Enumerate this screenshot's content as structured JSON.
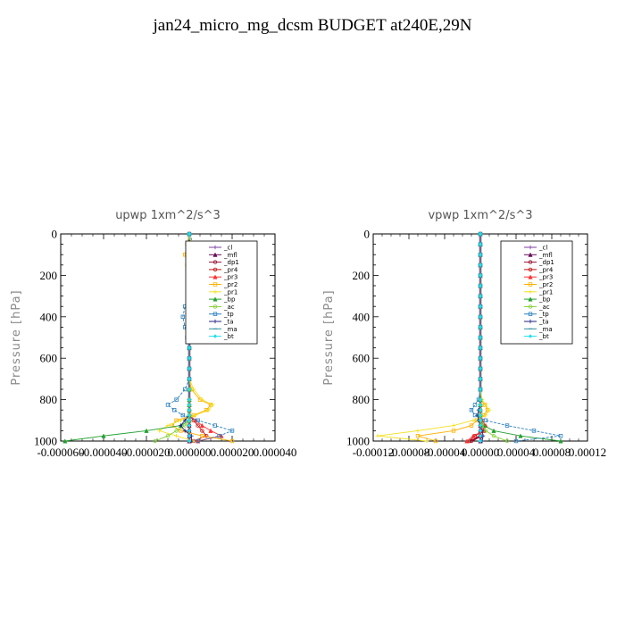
{
  "title": "jan24_micro_mg_dcsm  BUDGET at240E,29N",
  "colors": {
    "cl": "#7b3fa0",
    "mfl": "#6a0f5a",
    "dp1": "#9b1030",
    "pr4": "#c01010",
    "pr3": "#ff3030",
    "pr2": "#ffb000",
    "pr1": "#f2e020",
    "bp": "#22a030",
    "ac": "#80d030",
    "tp": "#2a80c0",
    "ta": "#202080",
    "ma": "#3090a0",
    "bt": "#20e0f0"
  },
  "chart_data": [
    {
      "type": "line",
      "title": "upwp   1xm^2/s^3",
      "ylabel": "Pressure [hPa]",
      "xlabel": "",
      "xlim": [
        -6e-05,
        4e-05
      ],
      "ylim": [
        1000,
        0
      ],
      "xticks": [
        "-0.000060",
        "-0.000040",
        "-0.000020",
        "0.000000",
        "0.000020",
        "0.000040"
      ],
      "yticks": [
        "0",
        "200",
        "400",
        "600",
        "800",
        "1000"
      ],
      "legend": "top-right",
      "levels": [
        0,
        50,
        100,
        150,
        200,
        250,
        300,
        350,
        400,
        450,
        500,
        550,
        600,
        650,
        700,
        750,
        800,
        825,
        850,
        875,
        900,
        925,
        950,
        975,
        1000
      ],
      "series": [
        {
          "name": "_cl",
          "key": "cl",
          "values": [
            0,
            0,
            0,
            0,
            0,
            0,
            0,
            0,
            0,
            0,
            0,
            0,
            0,
            0,
            0,
            0,
            0,
            0,
            0,
            0,
            0,
            0,
            0,
            0,
            0
          ]
        },
        {
          "name": "_mfl",
          "key": "mfl",
          "values": [
            0,
            0,
            0,
            0,
            0,
            0,
            0,
            0,
            0,
            0,
            0,
            0,
            0,
            0,
            0,
            0,
            0,
            0,
            0,
            0,
            0,
            0,
            0,
            0,
            0
          ]
        },
        {
          "name": "_dp1",
          "key": "dp1",
          "values": [
            0,
            0,
            0,
            0,
            0,
            0,
            0,
            0,
            0,
            0,
            0,
            0,
            0,
            0,
            0,
            0,
            0,
            0,
            0,
            0,
            0,
            0,
            0,
            0,
            0
          ]
        },
        {
          "name": "_pr4",
          "key": "pr4",
          "values": [
            0,
            0,
            0,
            0,
            0,
            0,
            0,
            0,
            0,
            0,
            0,
            0,
            0,
            0,
            0,
            0,
            0,
            0,
            0,
            0,
            2e-06,
            4e-06,
            6e-06,
            8e-06,
            2e-06
          ]
        },
        {
          "name": "_pr3",
          "key": "pr3",
          "values": [
            0,
            0,
            0,
            0,
            0,
            0,
            0,
            0,
            0,
            0,
            0,
            0,
            0,
            0,
            0,
            0,
            0,
            0,
            0,
            0,
            3e-06,
            6e-06,
            1e-05,
            1.5e-05,
            4e-06
          ]
        },
        {
          "name": "_pr2",
          "key": "pr2",
          "values": [
            0,
            -1e-06,
            -2e-06,
            -1e-06,
            0,
            0,
            0,
            1e-06,
            2e-06,
            1e-06,
            0,
            0,
            0,
            0,
            0,
            1e-06,
            5e-06,
            1e-05,
            8e-06,
            2e-06,
            -6e-06,
            -8e-06,
            -4e-06,
            6e-06,
            2e-05
          ]
        },
        {
          "name": "_pr1",
          "key": "pr1",
          "values": [
            0,
            1e-06,
            0,
            -1e-06,
            0,
            0,
            0,
            -1e-06,
            -1e-06,
            0,
            0,
            0,
            0,
            0,
            0,
            2e-06,
            6e-06,
            1.1e-05,
            9e-06,
            3e-06,
            -4e-06,
            -1e-05,
            -1.4e-05,
            -6e-06,
            2e-06
          ]
        },
        {
          "name": "_bp",
          "key": "bp",
          "values": [
            0,
            0,
            0,
            0,
            0,
            0,
            0,
            0,
            0,
            0,
            0,
            0,
            0,
            0,
            0,
            0,
            0,
            0,
            0,
            0,
            0,
            -4e-06,
            -2e-05,
            -4e-05,
            -5.8e-05
          ]
        },
        {
          "name": "_ac",
          "key": "ac",
          "values": [
            0,
            0,
            0,
            0,
            0,
            0,
            0,
            0,
            0,
            0,
            0,
            0,
            0,
            0,
            0,
            0,
            0,
            0,
            0,
            0,
            0,
            -2e-06,
            -6e-06,
            -1e-05,
            -1.6e-05
          ]
        },
        {
          "name": "_tp",
          "key": "tp",
          "values": [
            0,
            2e-06,
            3e-06,
            1e-06,
            0,
            1e-06,
            0,
            -2e-06,
            -3e-06,
            -2e-06,
            -1e-06,
            0,
            0,
            0,
            0,
            -2e-06,
            -6e-06,
            -1e-05,
            -7e-06,
            -3e-06,
            4e-06,
            1.2e-05,
            2e-05,
            1.4e-05,
            4e-06
          ]
        },
        {
          "name": "_ta",
          "key": "ta",
          "values": [
            0,
            0,
            0,
            0,
            0,
            0,
            0,
            0,
            0,
            0,
            0,
            0,
            0,
            0,
            0,
            0,
            0,
            0,
            0,
            0,
            -2e-06,
            -4e-06,
            -2e-06,
            1e-06,
            1e-06
          ]
        },
        {
          "name": "_ma",
          "key": "ma",
          "values": [
            0,
            0,
            0,
            0,
            0,
            0,
            0,
            0,
            0,
            0,
            0,
            0,
            0,
            0,
            0,
            0,
            0,
            0,
            0,
            0,
            0,
            0,
            0,
            0,
            0
          ]
        },
        {
          "name": "_bt",
          "key": "bt",
          "values": [
            0,
            0,
            0,
            0,
            0,
            0,
            0,
            0,
            0,
            0,
            0,
            0,
            0,
            0,
            0,
            0,
            0,
            0,
            0,
            0,
            0,
            0,
            0,
            0,
            0
          ]
        }
      ]
    },
    {
      "type": "line",
      "title": "vpwp   1xm^2/s^3",
      "ylabel": "Pressure [hPa]",
      "xlabel": "",
      "xlim": [
        -0.00012,
        0.00012
      ],
      "ylim": [
        1000,
        0
      ],
      "xticks": [
        "-0.00012",
        "-0.00008",
        "-0.00004",
        "0.00000",
        "0.00004",
        "0.00008",
        "0.00012"
      ],
      "yticks": [
        "0",
        "200",
        "400",
        "600",
        "800",
        "1000"
      ],
      "legend": "top-right",
      "levels": [
        0,
        50,
        100,
        150,
        200,
        250,
        300,
        350,
        400,
        450,
        500,
        550,
        600,
        650,
        700,
        750,
        800,
        825,
        850,
        875,
        900,
        925,
        950,
        975,
        1000
      ],
      "series": [
        {
          "name": "_cl",
          "key": "cl",
          "values": [
            0,
            0,
            0,
            0,
            0,
            0,
            0,
            0,
            0,
            0,
            0,
            0,
            0,
            0,
            0,
            0,
            0,
            0,
            0,
            0,
            0,
            0,
            0,
            0,
            0
          ]
        },
        {
          "name": "_mfl",
          "key": "mfl",
          "values": [
            0,
            0,
            0,
            0,
            0,
            0,
            0,
            0,
            0,
            0,
            0,
            0,
            0,
            0,
            0,
            0,
            0,
            0,
            0,
            0,
            0,
            0,
            0,
            0,
            0
          ]
        },
        {
          "name": "_dp1",
          "key": "dp1",
          "values": [
            0,
            0,
            0,
            0,
            0,
            0,
            0,
            0,
            0,
            0,
            0,
            0,
            0,
            0,
            0,
            0,
            0,
            0,
            0,
            0,
            0,
            0,
            0,
            0,
            -1e-05
          ]
        },
        {
          "name": "_pr4",
          "key": "pr4",
          "values": [
            0,
            0,
            0,
            0,
            0,
            0,
            0,
            0,
            0,
            0,
            0,
            0,
            0,
            0,
            0,
            0,
            0,
            0,
            0,
            0,
            0,
            2e-06,
            4e-06,
            -6e-06,
            -1.2e-05
          ]
        },
        {
          "name": "_pr3",
          "key": "pr3",
          "values": [
            0,
            0,
            0,
            0,
            0,
            0,
            0,
            0,
            0,
            0,
            0,
            0,
            0,
            0,
            0,
            0,
            0,
            0,
            0,
            0,
            2e-06,
            6e-06,
            4e-06,
            -8e-06,
            -1.5e-05
          ]
        },
        {
          "name": "_pr2",
          "key": "pr2",
          "values": [
            0,
            0,
            0,
            0,
            0,
            0,
            0,
            0,
            0,
            0,
            0,
            0,
            0,
            0,
            0,
            0,
            0,
            5e-06,
            8e-06,
            4e-06,
            -4e-06,
            -1e-05,
            -3e-05,
            -7e-05,
            -5e-05
          ]
        },
        {
          "name": "_pr1",
          "key": "pr1",
          "values": [
            0,
            0,
            0,
            0,
            0,
            0,
            0,
            0,
            0,
            0,
            0,
            0,
            0,
            0,
            0,
            0,
            2e-06,
            6e-06,
            1e-05,
            6e-06,
            -8e-06,
            -3e-05,
            -7e-05,
            -0.000115,
            -6e-05
          ]
        },
        {
          "name": "_bp",
          "key": "bp",
          "values": [
            0,
            0,
            0,
            0,
            0,
            0,
            0,
            0,
            0,
            0,
            0,
            0,
            0,
            0,
            0,
            0,
            0,
            0,
            0,
            0,
            0,
            4e-06,
            1.5e-05,
            4.5e-05,
            9e-05
          ]
        },
        {
          "name": "_ac",
          "key": "ac",
          "values": [
            0,
            0,
            0,
            0,
            0,
            0,
            0,
            0,
            0,
            0,
            0,
            0,
            0,
            0,
            0,
            0,
            0,
            0,
            0,
            0,
            0,
            2e-06,
            6e-06,
            1.5e-05,
            3e-05
          ]
        },
        {
          "name": "_tp",
          "key": "tp",
          "values": [
            0,
            0,
            0,
            0,
            0,
            0,
            0,
            0,
            0,
            0,
            0,
            0,
            0,
            0,
            0,
            0,
            -2e-06,
            -6e-06,
            -1e-05,
            -6e-06,
            6e-06,
            3e-05,
            6e-05,
            9e-05,
            4e-05
          ]
        },
        {
          "name": "_ta",
          "key": "ta",
          "values": [
            0,
            0,
            0,
            0,
            0,
            0,
            0,
            0,
            0,
            0,
            0,
            0,
            0,
            0,
            0,
            0,
            0,
            0,
            -2e-06,
            -3e-06,
            -2e-06,
            0,
            2e-06,
            3e-06,
            2e-06
          ]
        },
        {
          "name": "_ma",
          "key": "ma",
          "values": [
            0,
            0,
            0,
            0,
            0,
            0,
            0,
            0,
            0,
            0,
            0,
            0,
            0,
            0,
            0,
            0,
            0,
            0,
            0,
            0,
            0,
            0,
            0,
            0,
            0
          ]
        },
        {
          "name": "_bt",
          "key": "bt",
          "values": [
            0,
            0,
            0,
            0,
            0,
            0,
            0,
            0,
            0,
            0,
            0,
            0,
            0,
            0,
            0,
            0,
            0,
            0,
            0,
            0,
            0,
            0,
            0,
            0,
            0
          ]
        }
      ]
    }
  ]
}
